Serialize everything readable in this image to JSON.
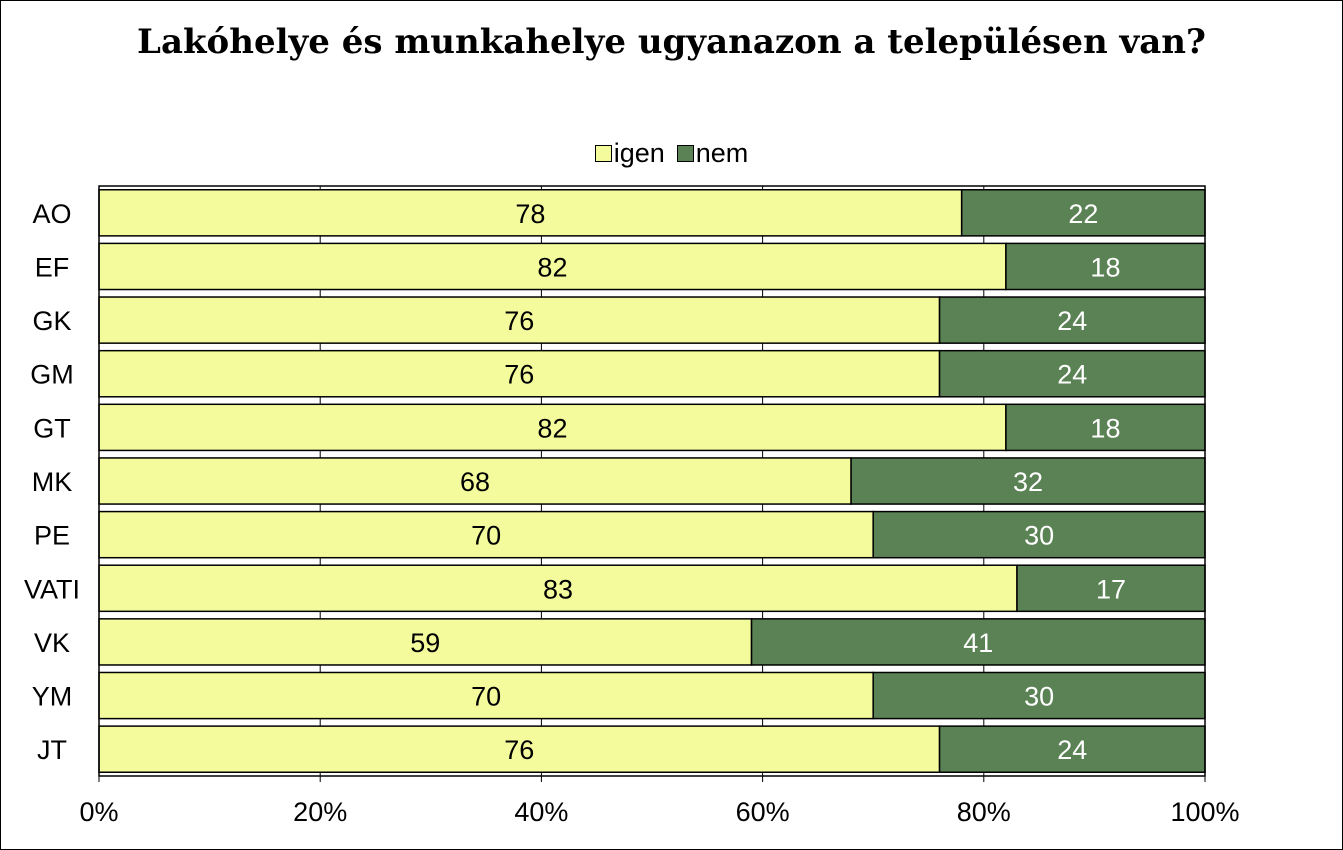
{
  "chart_data": {
    "type": "bar",
    "orientation": "horizontal",
    "stacked": true,
    "title": "Lakóhelye és munkahelye ugyanazon a településen van?",
    "categories": [
      "AO",
      "EF",
      "GK",
      "GM",
      "GT",
      "MK",
      "PE",
      "VATI",
      "VK",
      "YM",
      "JT"
    ],
    "series": [
      {
        "name": "igen",
        "color": "#f4fb9c",
        "label_color": "#000000",
        "values": [
          78,
          82,
          76,
          76,
          82,
          68,
          70,
          83,
          59,
          70,
          76
        ]
      },
      {
        "name": "nem",
        "color": "#5a8254",
        "label_color": "#ffffff",
        "values": [
          22,
          18,
          24,
          24,
          18,
          32,
          30,
          17,
          41,
          30,
          24
        ]
      }
    ],
    "xlim": [
      0,
      100
    ],
    "x_ticks": [
      "0%",
      "20%",
      "40%",
      "60%",
      "80%",
      "100%"
    ],
    "xlabel": "",
    "ylabel": "",
    "grid": "vertical",
    "legend_position": "top-center"
  }
}
